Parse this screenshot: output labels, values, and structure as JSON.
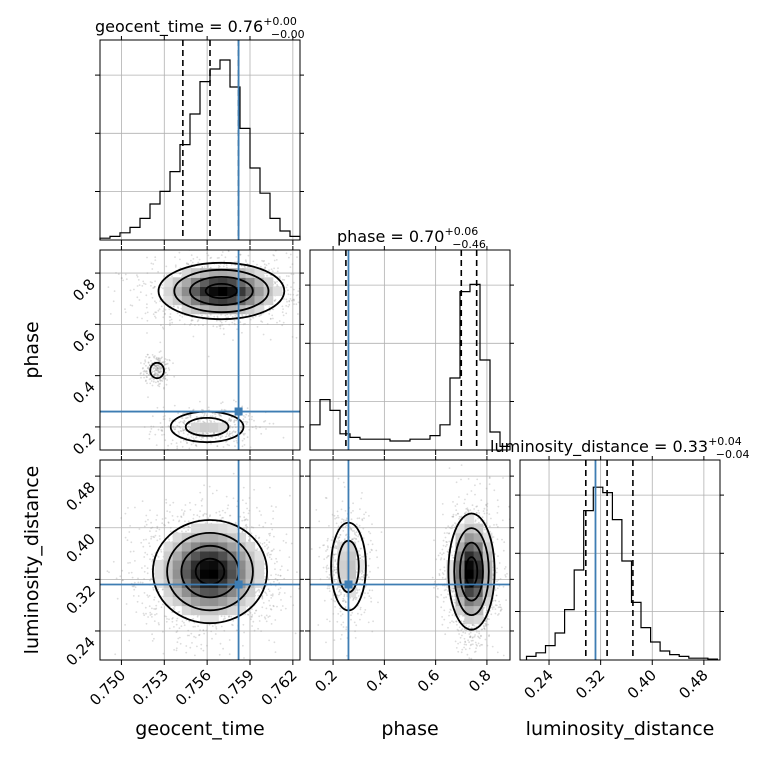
{
  "chart_data": {
    "type": "corner",
    "truth_color": "#3e7db3",
    "parameters": [
      {
        "name": "geocent_time",
        "axis_label": "geocent_time",
        "title_main": "geocent_time = 0.76",
        "title_plus": "+0.00",
        "title_minus": "−0.00",
        "range": [
          0.7485,
          0.7625
        ],
        "ticks": [
          0.75,
          0.753,
          0.756,
          0.759,
          0.762
        ],
        "tick_labels": [
          "0.750",
          "0.753",
          "0.756",
          "0.759",
          "0.762"
        ],
        "truth": 0.7582,
        "quantiles": [
          0.7543,
          0.7562,
          0.7582
        ],
        "hist_edges_start": 0.7485,
        "hist_bin_width": 0.0007,
        "hist": [
          0.01,
          0.02,
          0.04,
          0.07,
          0.12,
          0.2,
          0.27,
          0.38,
          0.53,
          0.7,
          0.88,
          0.95,
          1.0,
          0.85,
          0.62,
          0.4,
          0.26,
          0.12,
          0.05,
          0.02
        ]
      },
      {
        "name": "phase",
        "axis_label": "phase",
        "title_main": "phase = 0.70",
        "title_plus": "+0.06",
        "title_minus": "−0.46",
        "range": [
          0.11,
          0.89
        ],
        "ticks": [
          0.2,
          0.4,
          0.6,
          0.8
        ],
        "tick_labels": [
          "0.2",
          "0.4",
          "0.6",
          "0.8"
        ],
        "truth": 0.26,
        "quantiles": [
          0.25,
          0.7,
          0.76
        ],
        "hist_edges_start": 0.11,
        "hist_bin_width": 0.039,
        "hist": [
          0.14,
          0.28,
          0.22,
          0.09,
          0.07,
          0.06,
          0.06,
          0.06,
          0.05,
          0.05,
          0.06,
          0.06,
          0.08,
          0.14,
          0.4,
          0.88,
          0.92,
          0.5,
          0.1,
          0.02
        ]
      },
      {
        "name": "luminosity_distance",
        "axis_label": "luminosity_distance",
        "title_main": "luminosity_distance = 0.33",
        "title_plus": "+0.04",
        "title_minus": "−0.04",
        "range": [
          0.195,
          0.505
        ],
        "ticks": [
          0.24,
          0.32,
          0.4,
          0.48
        ],
        "tick_labels": [
          "0.24",
          "0.32",
          "0.40",
          "0.48"
        ],
        "truth": 0.312,
        "quantiles": [
          0.297,
          0.33,
          0.37
        ],
        "hist_edges_start": 0.205,
        "hist_bin_width": 0.0148,
        "hist": [
          0.02,
          0.04,
          0.08,
          0.15,
          0.28,
          0.5,
          0.83,
          0.96,
          0.93,
          0.78,
          0.55,
          0.32,
          0.18,
          0.1,
          0.05,
          0.03,
          0.02,
          0.01,
          0.01,
          0.005
        ]
      }
    ],
    "pairs": [
      {
        "x": "geocent_time",
        "y": "phase",
        "modes": [
          {
            "cx": 0.757,
            "cy": 0.73,
            "sx": 0.0022,
            "sy": 0.055,
            "weight": 0.7
          },
          {
            "cx": 0.756,
            "cy": 0.2,
            "sx": 0.0015,
            "sy": 0.035,
            "weight": 0.2
          },
          {
            "cx": 0.7525,
            "cy": 0.42,
            "sx": 0.0004,
            "sy": 0.025,
            "weight": 0.1
          }
        ]
      },
      {
        "x": "geocent_time",
        "y": "luminosity_distance",
        "modes": [
          {
            "cx": 0.7562,
            "cy": 0.332,
            "sx": 0.002,
            "sy": 0.04,
            "weight": 1.0
          }
        ]
      },
      {
        "x": "phase",
        "y": "luminosity_distance",
        "modes": [
          {
            "cx": 0.74,
            "cy": 0.332,
            "sx": 0.045,
            "sy": 0.045,
            "weight": 0.75
          },
          {
            "cx": 0.26,
            "cy": 0.34,
            "sx": 0.04,
            "sy": 0.04,
            "weight": 0.25
          }
        ]
      }
    ]
  }
}
